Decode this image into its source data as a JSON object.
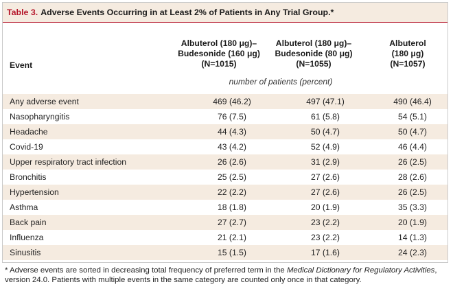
{
  "table": {
    "label": "Table 3.",
    "title": "Adverse Events Occurring in at Least 2% of Patients in Any Trial Group.*",
    "event_header": "Event",
    "columns": [
      {
        "line1": "Albuterol (180 μg)–",
        "line2": "Budesonide (160 μg)",
        "line3": "(N=1015)"
      },
      {
        "line1": "Albuterol (180 μg)–",
        "line2": "Budesonide (80 μg)",
        "line3": "(N=1055)"
      },
      {
        "line1": "Albuterol",
        "line2": "(180 μg)",
        "line3": "(N=1057)"
      }
    ],
    "unit_note": "number of patients (percent)",
    "rows": [
      {
        "event": "Any adverse event",
        "values": [
          "469 (46.2)",
          "497 (47.1)",
          "490 (46.4)"
        ]
      },
      {
        "event": "Nasopharyngitis",
        "values": [
          "76 (7.5)",
          "61 (5.8)",
          "54 (5.1)"
        ]
      },
      {
        "event": "Headache",
        "values": [
          "44 (4.3)",
          "50 (4.7)",
          "50 (4.7)"
        ]
      },
      {
        "event": "Covid-19",
        "values": [
          "43 (4.2)",
          "52 (4.9)",
          "46 (4.4)"
        ]
      },
      {
        "event": "Upper respiratory tract infection",
        "values": [
          "26 (2.6)",
          "31 (2.9)",
          "26 (2.5)"
        ]
      },
      {
        "event": "Bronchitis",
        "values": [
          "25 (2.5)",
          "27 (2.6)",
          "28 (2.6)"
        ]
      },
      {
        "event": "Hypertension",
        "values": [
          "22 (2.2)",
          "27 (2.6)",
          "26 (2.5)"
        ]
      },
      {
        "event": "Asthma",
        "values": [
          "18 (1.8)",
          "20 (1.9)",
          "35 (3.3)"
        ]
      },
      {
        "event": "Back pain",
        "values": [
          "27 (2.7)",
          "23 (2.2)",
          "20 (1.9)"
        ]
      },
      {
        "event": "Influenza",
        "values": [
          "21 (2.1)",
          "23 (2.2)",
          "14 (1.3)"
        ]
      },
      {
        "event": "Sinusitis",
        "values": [
          "15 (1.5)",
          "17 (1.6)",
          "24 (2.3)"
        ]
      }
    ]
  },
  "footnote": {
    "marker": "*",
    "text_before": " Adverse events are sorted in decreasing total frequency of preferred term in the ",
    "italic": "Medical Dictionary for Regulatory Activities",
    "text_after": ", version 24.0. Patients with multiple events in the same category are counted only once in that category."
  },
  "colors": {
    "accent": "#b5172b",
    "band": "#f5ebe0"
  }
}
